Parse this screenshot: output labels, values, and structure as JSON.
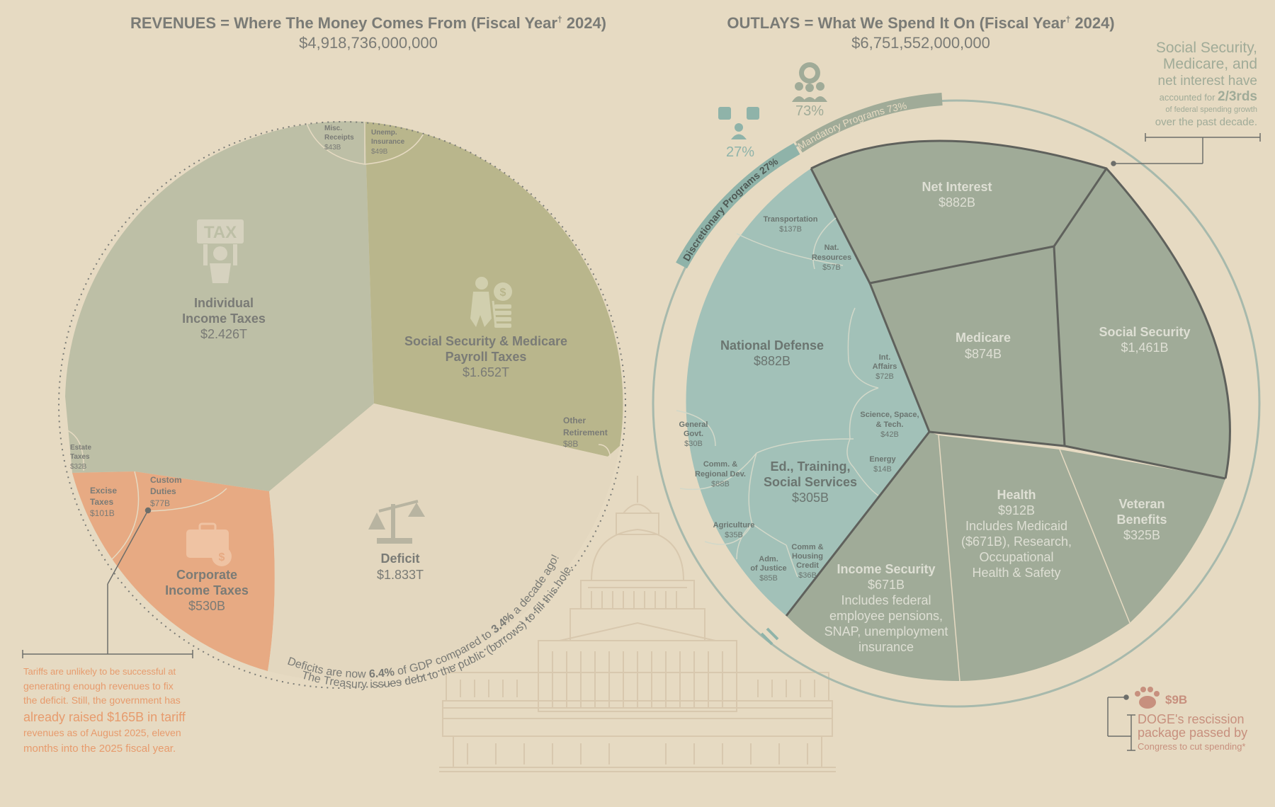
{
  "header_left": {
    "title_pre": "REVENUES = Where The Money Comes From (Fiscal Year",
    "dagger": "†",
    "title_post": " 2024)",
    "total": "$4,918,736,000,000"
  },
  "header_right": {
    "title_pre": "OUTLAYS = What We Spend It On (Fiscal Year",
    "dagger": "†",
    "title_post": " 2024)",
    "total": "$6,751,552,000,000"
  },
  "colors": {
    "background": "#e6dac2",
    "individual": "#bdbfa6",
    "payroll": "#b9b68c",
    "corporate": "#e7aa83",
    "deficit": "#e3d7bf",
    "mandatory": "#a0ab98",
    "discretionary": "#a2c1b8",
    "text": "#7a7b76",
    "tariff_text": "#e79b6d",
    "doge_text": "#c7907e"
  },
  "chart_data": [
    {
      "type": "pie",
      "title": "REVENUES = Where The Money Comes From (Fiscal Year† 2024)",
      "total": "$4,918,736,000,000",
      "slices": [
        {
          "name": "Individual Income Taxes",
          "value": "$2.426T",
          "amount": 2426,
          "icon": "tax-icon"
        },
        {
          "name": "Social Security & Medicare Payroll Taxes",
          "value": "$1.652T",
          "amount": 1652,
          "icon": "elderly-money-icon"
        },
        {
          "name": "Corporate Income Taxes",
          "value": "$530B",
          "amount": 530,
          "icon": "briefcase-money-icon"
        },
        {
          "name": "Deficit",
          "value": "$1.833T",
          "amount": 1833,
          "icon": "scales-icon"
        },
        {
          "name": "Excise Taxes",
          "value": "$101B",
          "amount": 101
        },
        {
          "name": "Custom Duties",
          "value": "$77B",
          "amount": 77
        },
        {
          "name": "Estate Taxes",
          "value": "$32B",
          "amount": 32
        },
        {
          "name": "Misc. Receipts",
          "value": "$43B",
          "amount": 43
        },
        {
          "name": "Unemp. Insurance",
          "value": "$49B",
          "amount": 49
        },
        {
          "name": "Other Retirement",
          "value": "$8B",
          "amount": 8
        }
      ],
      "labels": {
        "individual": [
          "Individual",
          "Income Taxes",
          "$2.426T"
        ],
        "payroll": [
          "Social Security & Medicare",
          "Payroll Taxes",
          "$1.652T"
        ],
        "corporate": [
          "Corporate",
          "Income Taxes",
          "$530B"
        ],
        "deficit": [
          "Deficit",
          "$1.833T"
        ],
        "excise": [
          "Excise",
          "Taxes",
          "$101B"
        ],
        "customs": [
          "Custom",
          "Duties",
          "$77B"
        ],
        "estate": [
          "Estate",
          "Taxes",
          "$32B"
        ],
        "misc": [
          "Misc.",
          "Receipts",
          "$43B"
        ],
        "unemp": [
          "Unemp.",
          "Insurance",
          "$49B"
        ],
        "other": [
          "Other",
          "Retirement",
          "$8B"
        ]
      },
      "tax_sign": "TAX",
      "deficit_note": {
        "line1_pre": "Deficits are now ",
        "line1_b1": "6.4%",
        "line1_mid": " of GDP compared to ",
        "line1_b2": "3.4%",
        "line1_post": " a decade ago!",
        "line2": "The Treasury issues debt to the public (borrows) to fill this hole."
      }
    },
    {
      "type": "treemap",
      "title": "OUTLAYS = What We Spend It On (Fiscal Year† 2024)",
      "total": "$6,751,552,000,000",
      "groups": [
        {
          "name": "Mandatory Programs 73%",
          "percent": "73%",
          "items": [
            {
              "name": "Net Interest",
              "value": "$882B"
            },
            {
              "name": "Medicare",
              "value": "$874B"
            },
            {
              "name": "Social Security",
              "value": "$1,461B"
            },
            {
              "name": "Health",
              "value": "$912B"
            },
            {
              "name": "Veteran Benefits",
              "value": "$325B"
            },
            {
              "name": "Income Security",
              "value": "$671B"
            }
          ]
        },
        {
          "name": "Discretionary Programs 27%",
          "percent": "27%",
          "items": [
            {
              "name": "National Defense",
              "value": "$882B"
            },
            {
              "name": "Ed., Training, Social Services",
              "value": "$305B"
            },
            {
              "name": "Transportation",
              "value": "$137B"
            },
            {
              "name": "Nat. Resources",
              "value": "$57B"
            },
            {
              "name": "Int. Affairs",
              "value": "$72B"
            },
            {
              "name": "Science, Space, & Tech.",
              "value": "$42B"
            },
            {
              "name": "Energy",
              "value": "$14B"
            },
            {
              "name": "General Govt.",
              "value": "$30B"
            },
            {
              "name": "Comm. & Regional Dev.",
              "value": "$88B"
            },
            {
              "name": "Agriculture",
              "value": "$35B"
            },
            {
              "name": "Adm. of Justice",
              "value": "$85B"
            },
            {
              "name": "Comm & Housing Credit",
              "value": "$36B"
            }
          ]
        }
      ],
      "labels": {
        "net_interest": [
          "Net Interest",
          "$882B"
        ],
        "medicare": [
          "Medicare",
          "$874B"
        ],
        "social_security": [
          "Social Security",
          "$1,461B"
        ],
        "health": [
          "Health",
          "$912B",
          "Includes Medicaid",
          "($671B), Research,",
          "Occupational",
          "Health & Safety"
        ],
        "veteran": [
          "Veteran",
          "Benefits",
          "$325B"
        ],
        "income_security": [
          "Income Security",
          "$671B",
          "Includes federal",
          "employee pensions,",
          "SNAP, unemployment",
          "insurance"
        ],
        "defense": [
          "National Defense",
          "$882B"
        ],
        "education": [
          "Ed., Training,",
          "Social Services",
          "$305B"
        ],
        "transportation": [
          "Transportation",
          "$137B"
        ],
        "nat_resources": [
          "Nat.",
          "Resources",
          "$57B"
        ],
        "int_affairs": [
          "Int.",
          "Affairs",
          "$72B"
        ],
        "science": [
          "Science, Space,",
          "& Tech.",
          "$42B"
        ],
        "energy": [
          "Energy",
          "$14B"
        ],
        "general_govt": [
          "General",
          "Govt.",
          "$30B"
        ],
        "comm_regional": [
          "Comm. &",
          "Regional Dev.",
          "$88B"
        ],
        "agriculture": [
          "Agriculture",
          "$35B"
        ],
        "justice": [
          "Adm.",
          "of Justice",
          "$85B"
        ],
        "housing_credit": [
          "Comm &",
          "Housing",
          "Credit",
          "$36B"
        ]
      },
      "ring_labels": {
        "mandatory": "Mandatory Programs 73%",
        "discretionary": "Discretionary Programs 27%",
        "mandatory_pct": "73%",
        "discretionary_pct": "27%"
      }
    }
  ],
  "notes": {
    "growth": {
      "l1": "Social Security,",
      "l2": "Medicare, and",
      "l3": "net interest have",
      "l4_pre": "accounted for ",
      "l4_b": "2/3rds",
      "l5": "of federal spending growth",
      "l6": "over the past decade."
    },
    "tariff": {
      "l1": "Tariffs are unlikely to be successful at",
      "l2": "generating enough revenues to fix",
      "l3": "the deficit. Still, the government has",
      "l4": "already raised $165B in tariff",
      "l5": "revenues as of August 2025, eleven",
      "l6": "months into the 2025 fiscal year."
    },
    "doge": {
      "amount": "$9B",
      "l1": "DOGE's rescission",
      "l2": "package passed by",
      "l3": "Congress to cut spending*"
    }
  }
}
